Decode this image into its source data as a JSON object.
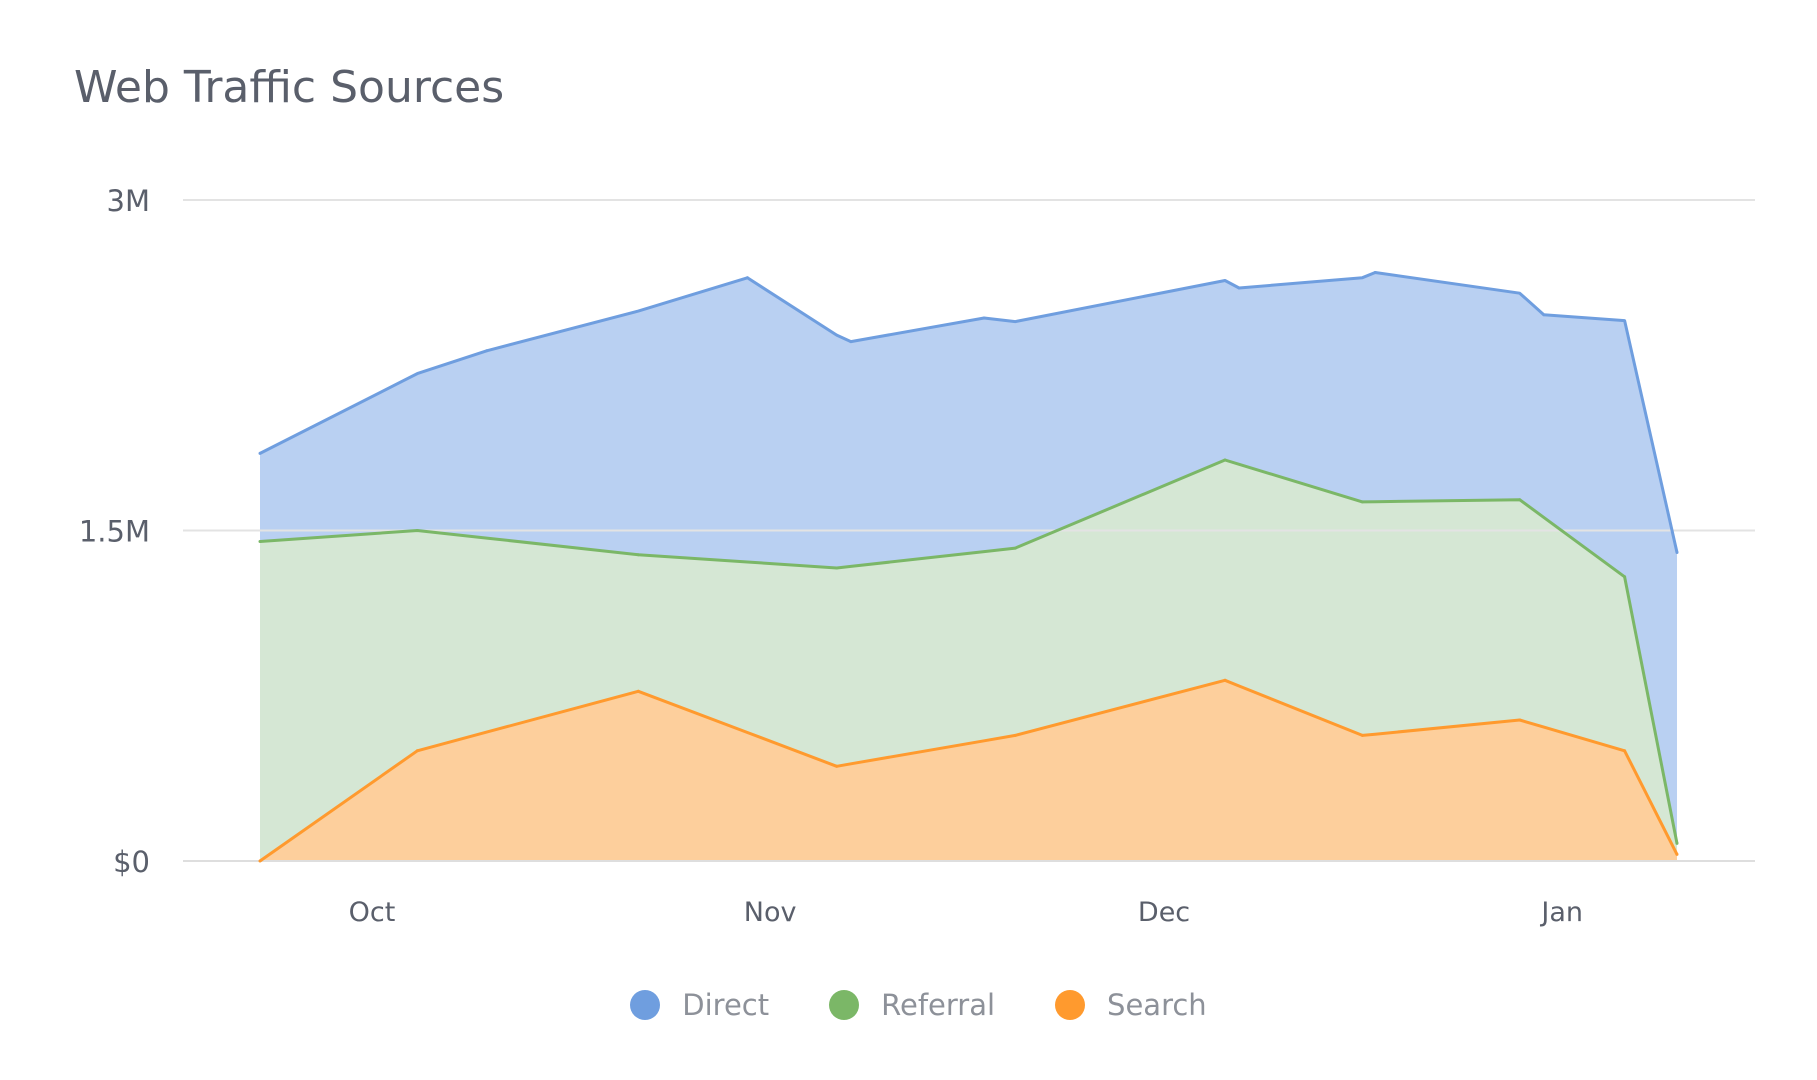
{
  "chart_data": {
    "type": "area",
    "stacked": true,
    "title": "Web Traffic Sources",
    "xlabel": "",
    "ylabel": "",
    "ylim": [
      0,
      3000000
    ],
    "y_ticks": [
      {
        "value": 0,
        "label": "$0"
      },
      {
        "value": 1500000,
        "label": "1.5M"
      },
      {
        "value": 3000000,
        "label": "3M"
      }
    ],
    "x_range": [
      0,
      100
    ],
    "x_ticks": [
      {
        "x": 7.9,
        "label": "Oct"
      },
      {
        "x": 36.0,
        "label": "Nov"
      },
      {
        "x": 63.8,
        "label": "Dec"
      },
      {
        "x": 91.9,
        "label": "Jan"
      }
    ],
    "grid": true,
    "legend_position": "bottom-center",
    "series": [
      {
        "name": "Search",
        "color": "#ff9a2e",
        "fill": "#fdcf9c",
        "points": [
          [
            0,
            0
          ],
          [
            11.1,
            500000
          ],
          [
            26.7,
            770000
          ],
          [
            40.7,
            430000
          ],
          [
            53.3,
            570000
          ],
          [
            68.1,
            820000
          ],
          [
            77.8,
            570000
          ],
          [
            88.9,
            640000
          ],
          [
            96.3,
            500000
          ],
          [
            100,
            30000
          ]
        ]
      },
      {
        "name": "Referral",
        "color": "#7bb767",
        "fill": "#d5e7d4",
        "points": [
          [
            0,
            1450000
          ],
          [
            11.1,
            1000000
          ],
          [
            26.7,
            620000
          ],
          [
            40.7,
            900000
          ],
          [
            53.3,
            850000
          ],
          [
            68.1,
            1000000
          ],
          [
            77.8,
            1060000
          ],
          [
            88.9,
            1000000
          ],
          [
            96.3,
            790000
          ],
          [
            100,
            50000
          ]
        ]
      },
      {
        "name": "Direct",
        "color": "#6f9edf",
        "fill": "#b9d0f2",
        "points": [
          [
            0,
            400000
          ],
          [
            16.0,
            850000
          ],
          [
            34.4,
            1290000
          ],
          [
            41.7,
            1020000
          ],
          [
            51.1,
            1060000
          ],
          [
            69.1,
            800000
          ],
          [
            78.7,
            1040000
          ],
          [
            90.6,
            920000
          ],
          [
            100,
            1320000
          ]
        ]
      }
    ]
  }
}
